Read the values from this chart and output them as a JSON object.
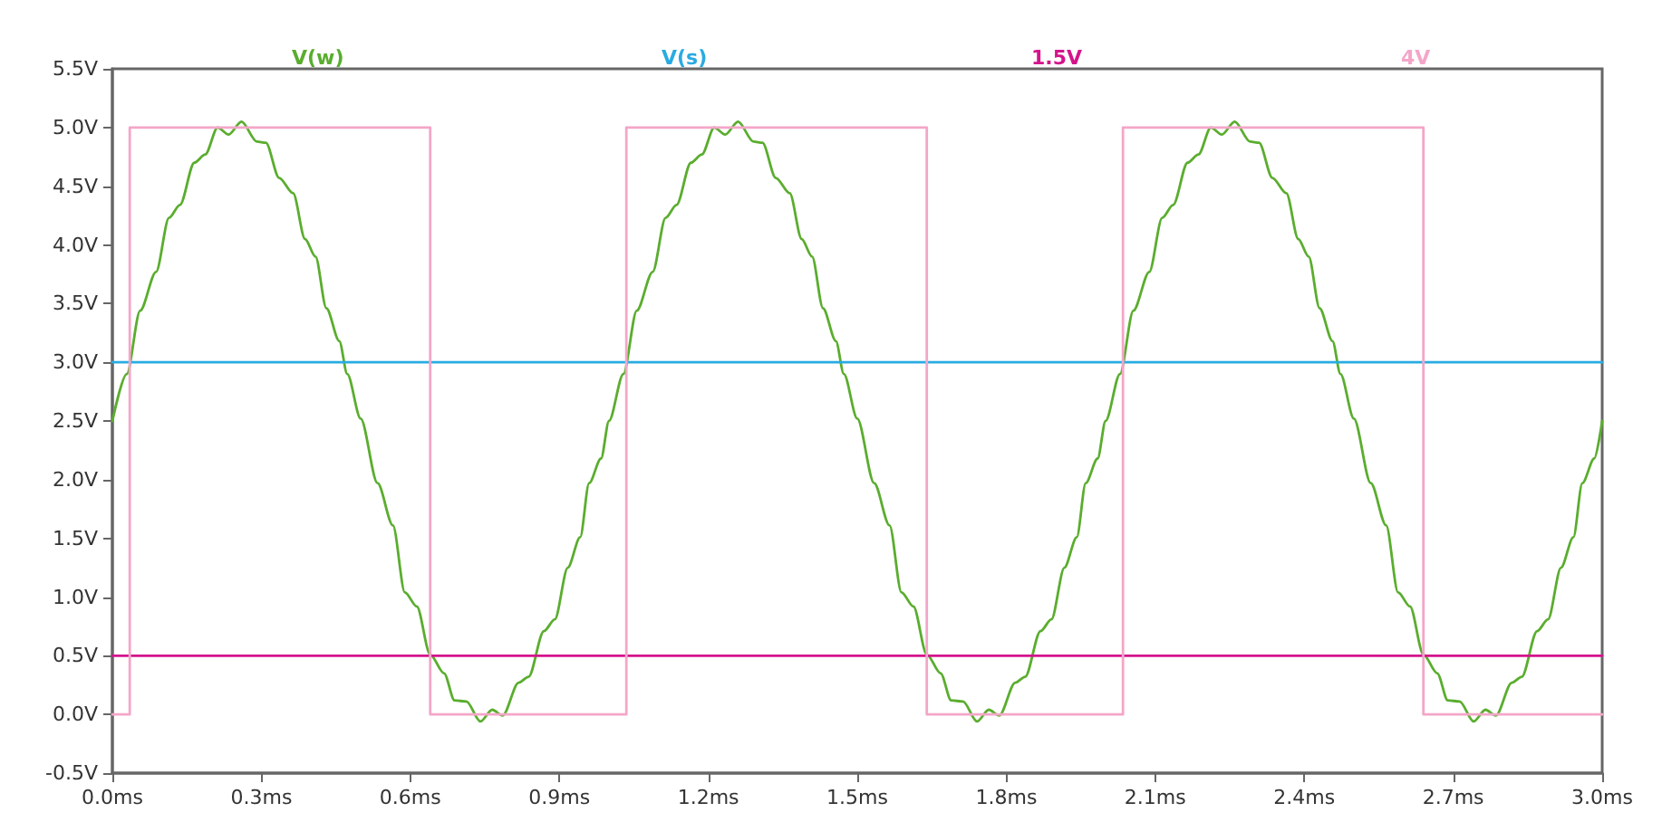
{
  "chart_data": {
    "type": "line",
    "marker": "none",
    "line_style": "solid",
    "grid": false,
    "legend": "top",
    "xlim": [
      0,
      3
    ],
    "ylim": [
      -0.5,
      5.5
    ],
    "xticks": [
      {
        "value": 0,
        "label": "0.0ms"
      },
      {
        "value": 0.3,
        "label": "0.3ms"
      },
      {
        "value": 0.6,
        "label": "0.6ms"
      },
      {
        "value": 0.9,
        "label": "0.9ms"
      },
      {
        "value": 1.2,
        "label": "1.2ms"
      },
      {
        "value": 1.5,
        "label": "1.5ms"
      },
      {
        "value": 1.8,
        "label": "1.8ms"
      },
      {
        "value": 2.1,
        "label": "2.1ms"
      },
      {
        "value": 2.4,
        "label": "2.4ms"
      },
      {
        "value": 2.7,
        "label": "2.7ms"
      },
      {
        "value": 3,
        "label": "3.0ms"
      }
    ],
    "yticks": [
      {
        "value": -0.5,
        "label": "-0.5V"
      },
      {
        "value": 0,
        "label": "0.0V"
      },
      {
        "value": 0.5,
        "label": "0.5V"
      },
      {
        "value": 1,
        "label": "1.0V"
      },
      {
        "value": 1.5,
        "label": "1.5V"
      },
      {
        "value": 2,
        "label": "2.0V"
      },
      {
        "value": 2.5,
        "label": "2.5V"
      },
      {
        "value": 3,
        "label": "3.0V"
      },
      {
        "value": 3.5,
        "label": "3.5V"
      },
      {
        "value": 4,
        "label": "4.0V"
      },
      {
        "value": 4.5,
        "label": "4.5V"
      },
      {
        "value": 5,
        "label": "5.0V"
      },
      {
        "value": 5.5,
        "label": "5.5V"
      }
    ],
    "series": [
      {
        "name": "V(w)",
        "color": "#5aad2e",
        "x": [
          0,
          0.029,
          0.056,
          0.088,
          0.114,
          0.136,
          0.165,
          0.187,
          0.212,
          0.234,
          0.26,
          0.291,
          0.309,
          0.336,
          0.364,
          0.388,
          0.409,
          0.431,
          0.457,
          0.473,
          0.5,
          0.534,
          0.565,
          0.589,
          0.613,
          0.64,
          0.668,
          0.689,
          0.713,
          0.741,
          0.765,
          0.786,
          0.818,
          0.838,
          0.869,
          0.891,
          0.917,
          0.942,
          0.96,
          0.984,
          1,
          1.029,
          1.056,
          1.088,
          1.114,
          1.136,
          1.165,
          1.187,
          1.212,
          1.234,
          1.26,
          1.291,
          1.309,
          1.336,
          1.364,
          1.388,
          1.409,
          1.431,
          1.457,
          1.473,
          1.5,
          1.534,
          1.565,
          1.589,
          1.613,
          1.64,
          1.668,
          1.689,
          1.713,
          1.741,
          1.765,
          1.786,
          1.818,
          1.838,
          1.869,
          1.891,
          1.917,
          1.942,
          1.96,
          1.984,
          2,
          2.029,
          2.056,
          2.088,
          2.114,
          2.136,
          2.165,
          2.187,
          2.212,
          2.234,
          2.26,
          2.291,
          2.309,
          2.336,
          2.364,
          2.388,
          2.409,
          2.431,
          2.457,
          2.473,
          2.5,
          2.534,
          2.565,
          2.589,
          2.613,
          2.64,
          2.668,
          2.689,
          2.713,
          2.741,
          2.765,
          2.786,
          2.818,
          2.838,
          2.869,
          2.891,
          2.917,
          2.942,
          2.96,
          2.984,
          3
        ],
        "values": [
          2.5,
          2.9,
          3.44,
          3.77,
          4.23,
          4.34,
          4.7,
          4.77,
          5.0,
          4.94,
          5.05,
          4.88,
          4.87,
          4.57,
          4.44,
          4.05,
          3.9,
          3.46,
          3.18,
          2.9,
          2.52,
          1.97,
          1.61,
          1.04,
          0.92,
          0.51,
          0.35,
          0.12,
          0.11,
          -0.06,
          0.04,
          -0.01,
          0.27,
          0.32,
          0.71,
          0.81,
          1.25,
          1.51,
          1.97,
          2.18,
          2.5,
          2.9,
          3.44,
          3.77,
          4.23,
          4.34,
          4.7,
          4.77,
          5.0,
          4.94,
          5.05,
          4.88,
          4.87,
          4.57,
          4.44,
          4.05,
          3.9,
          3.46,
          3.18,
          2.9,
          2.52,
          1.97,
          1.61,
          1.04,
          0.92,
          0.51,
          0.35,
          0.12,
          0.11,
          -0.06,
          0.04,
          -0.01,
          0.27,
          0.32,
          0.71,
          0.81,
          1.25,
          1.51,
          1.97,
          2.18,
          2.5,
          2.9,
          3.44,
          3.77,
          4.23,
          4.34,
          4.7,
          4.77,
          5.0,
          4.94,
          5.05,
          4.88,
          4.87,
          4.57,
          4.44,
          4.05,
          3.9,
          3.46,
          3.18,
          2.9,
          2.52,
          1.97,
          1.61,
          1.04,
          0.92,
          0.51,
          0.35,
          0.12,
          0.11,
          -0.06,
          0.04,
          -0.01,
          0.27,
          0.32,
          0.71,
          0.81,
          1.25,
          1.51,
          1.97,
          2.18,
          2.5
        ]
      },
      {
        "name": "V(s)",
        "color": "#29abe2",
        "x": [
          0,
          3
        ],
        "values": [
          3,
          3
        ]
      },
      {
        "name": "1.5V",
        "color": "#d4148c",
        "x": [
          0,
          3
        ],
        "values": [
          0.5,
          0.5
        ]
      },
      {
        "name": "4V",
        "color": "#f4a6c8",
        "type": "step",
        "x": [
          0,
          0.035,
          0.64,
          1.035,
          1.64,
          2.035,
          2.64,
          3
        ],
        "values": [
          0,
          5,
          0,
          5,
          0,
          5,
          0,
          0
        ]
      }
    ]
  }
}
